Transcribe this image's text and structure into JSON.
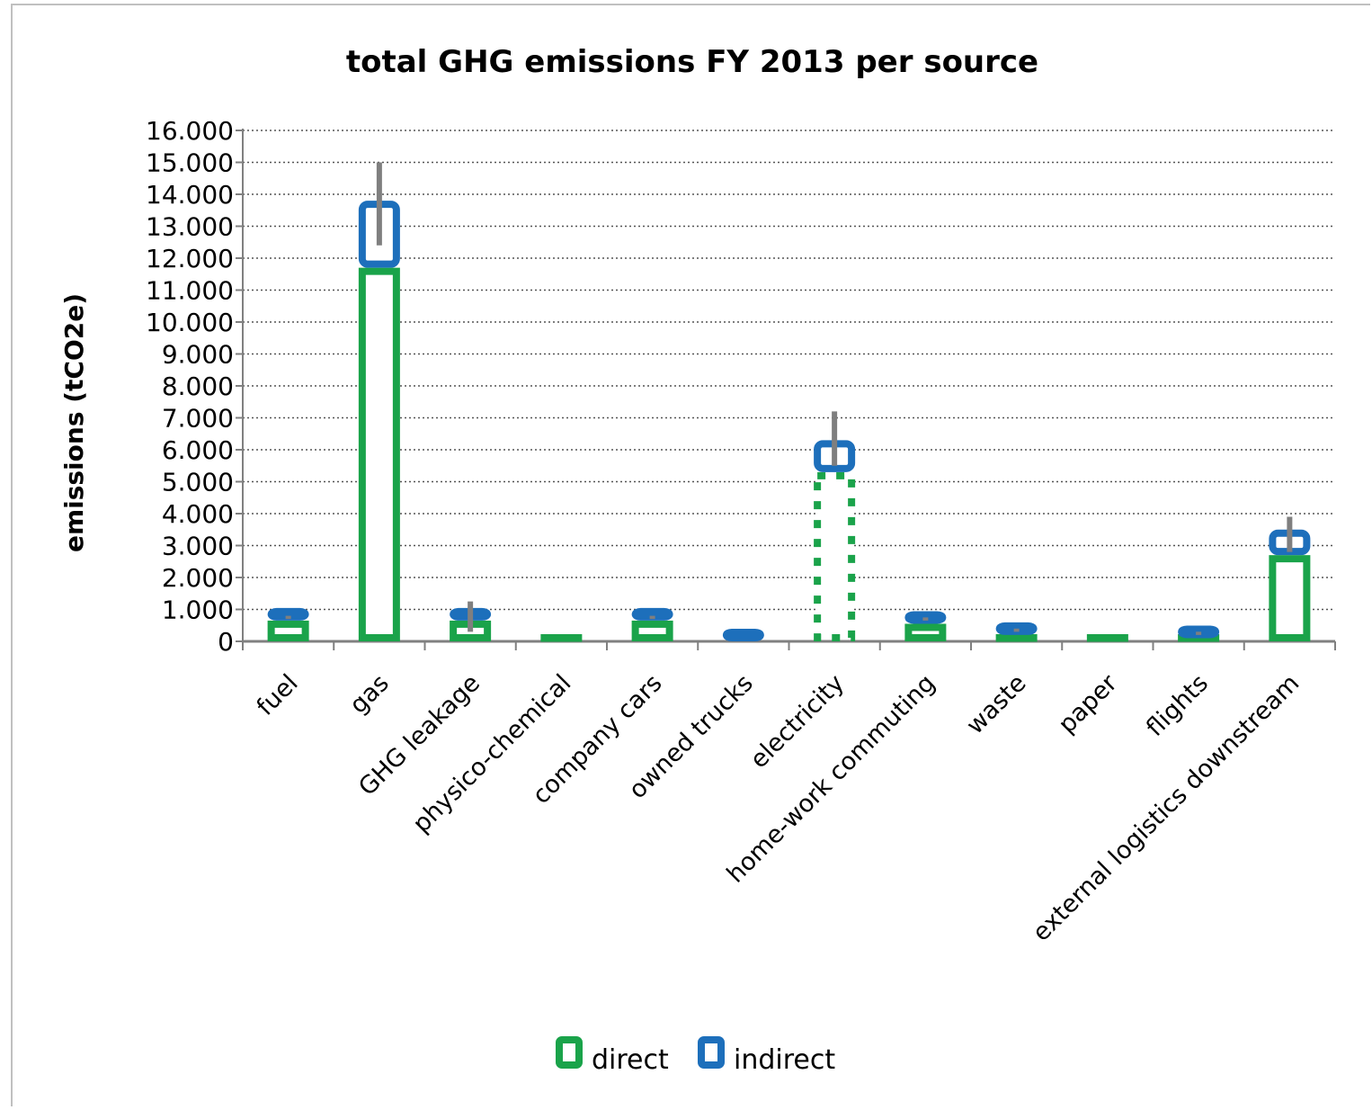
{
  "chart_data": {
    "type": "bar",
    "stacked": true,
    "title": "total GHG emissions FY 2013 per source",
    "xlabel": "",
    "ylabel": "emissions (tCO2e)",
    "ylim": [
      0,
      16000
    ],
    "y_ticks": [
      "0",
      "1.000",
      "2.000",
      "3.000",
      "4.000",
      "5.000",
      "6.000",
      "7.000",
      "8.000",
      "9.000",
      "10.000",
      "11.000",
      "12.000",
      "13.000",
      "14.000",
      "15.000",
      "16.000"
    ],
    "grid": "horizontal dotted",
    "legend_position": "bottom",
    "categories": [
      "fuel",
      "gas",
      "GHG leakage",
      "physico-chemical",
      "company cars",
      "owned trucks",
      "electricity",
      "home-work commuting",
      "waste",
      "paper",
      "flights",
      "external logistics downstream"
    ],
    "series": [
      {
        "name": "direct",
        "color": "#1aa34a",
        "values": [
          650,
          11700,
          650,
          200,
          650,
          0,
          5300,
          550,
          200,
          100,
          100,
          2700
        ],
        "dotted": [
          false,
          false,
          false,
          false,
          false,
          false,
          true,
          false,
          false,
          false,
          false,
          false
        ]
      },
      {
        "name": "indirect",
        "color": "#1d6fbb",
        "values": [
          200,
          2100,
          300,
          0,
          200,
          250,
          1000,
          250,
          300,
          0,
          300,
          800
        ]
      }
    ],
    "error_bars": [
      {
        "low": 700,
        "high": 800
      },
      {
        "low": 12400,
        "high": 15000
      },
      {
        "low": 300,
        "high": 1250
      },
      null,
      {
        "low": 700,
        "high": 800
      },
      null,
      {
        "low": 5500,
        "high": 7200
      },
      {
        "low": 650,
        "high": 750
      },
      {
        "low": 300,
        "high": 400
      },
      null,
      {
        "low": 200,
        "high": 300
      },
      {
        "low": 2800,
        "high": 3900
      }
    ],
    "error_bar_color": "#7f7f7f"
  }
}
